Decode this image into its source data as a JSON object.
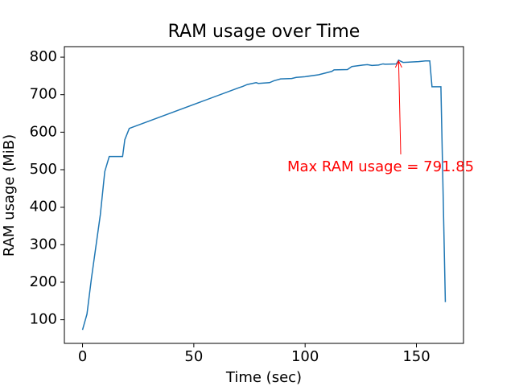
{
  "chart_data": {
    "type": "line",
    "title": "RAM usage over Time",
    "x_label": "Time (sec)",
    "y_label": "RAM usage (MiB)",
    "x": [
      0,
      2,
      4,
      8,
      10,
      12,
      18,
      19,
      21,
      70,
      72,
      74,
      78,
      79,
      84,
      86,
      89,
      94,
      96,
      100,
      106,
      112,
      113,
      119,
      121,
      126,
      128,
      130,
      133,
      135,
      136,
      141,
      142,
      144,
      151,
      154,
      156,
      157,
      161,
      163
    ],
    "series": [
      {
        "name": "RAM usage",
        "color": "#1f77b4",
        "values": [
          73,
          115,
          210,
          380,
          495,
          535,
          535,
          580,
          610,
          718,
          722,
          727,
          732,
          730,
          732,
          737,
          742,
          743,
          746,
          748,
          753,
          762,
          766,
          767,
          775,
          779,
          780,
          778,
          779,
          782,
          781,
          782,
          791.85,
          786,
          788,
          790,
          790,
          721,
          721,
          147
        ]
      }
    ],
    "xlim": [
      -8.15,
      171.15
    ],
    "xticks": [
      0,
      50,
      100,
      150
    ],
    "ylim": [
      37,
      828
    ],
    "yticks": [
      100,
      200,
      300,
      400,
      500,
      600,
      700,
      800
    ],
    "annotation": {
      "text": "Max RAM usage = 791.85",
      "color": "#ff0000"
    }
  }
}
